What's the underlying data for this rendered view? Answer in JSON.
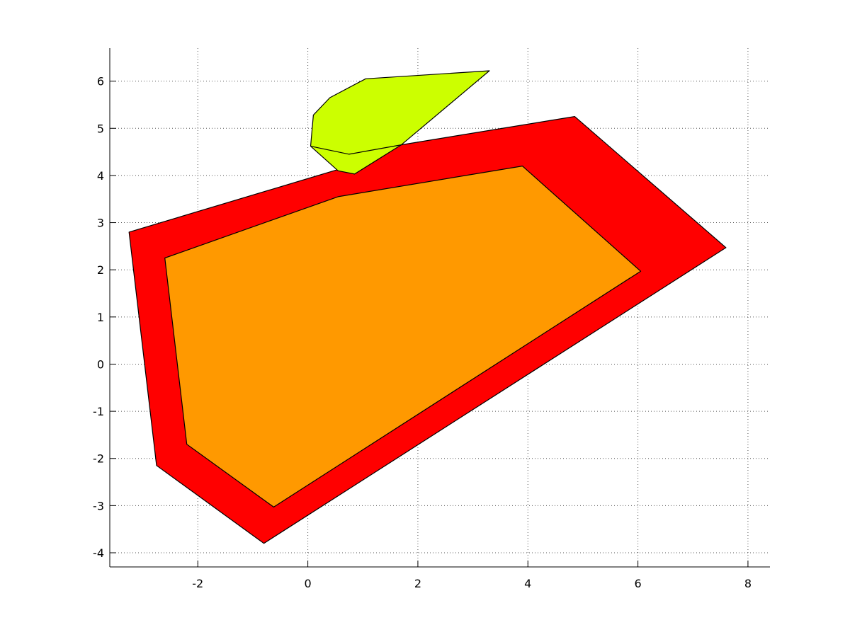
{
  "chart_data": {
    "type": "area",
    "title": "",
    "xlabel": "",
    "ylabel": "",
    "xlim": [
      -3.6,
      8.4
    ],
    "ylim": [
      -4.3,
      6.7
    ],
    "x_ticks": [
      -2,
      0,
      2,
      4,
      6,
      8
    ],
    "y_ticks": [
      -4,
      -3,
      -2,
      -1,
      0,
      1,
      2,
      3,
      4,
      5,
      6
    ],
    "x_tick_labels": [
      "-2",
      "0",
      "2",
      "4",
      "6",
      "8"
    ],
    "y_tick_labels": [
      "-4",
      "-3",
      "-2",
      "-1",
      "0",
      "1",
      "2",
      "3",
      "4",
      "5",
      "6"
    ],
    "grid": true,
    "legend": "none",
    "series": [
      {
        "color": "#ff0000",
        "points": [
          [
            -3.25,
            2.8
          ],
          [
            0.9,
            4.25
          ],
          [
            1.7,
            4.65
          ],
          [
            4.85,
            5.25
          ],
          [
            7.6,
            2.47
          ],
          [
            -0.8,
            -3.8
          ],
          [
            -2.75,
            -2.15
          ]
        ]
      },
      {
        "color": "#ff9900",
        "points": [
          [
            -2.6,
            2.25
          ],
          [
            0.55,
            3.55
          ],
          [
            3.9,
            4.2
          ],
          [
            6.05,
            1.97
          ],
          [
            -0.62,
            -3.03
          ],
          [
            -2.2,
            -1.7
          ]
        ]
      },
      {
        "color": "#ccff00",
        "points": [
          [
            0.1,
            5.28
          ],
          [
            0.4,
            5.65
          ],
          [
            1.05,
            6.05
          ],
          [
            3.3,
            6.22
          ],
          [
            1.7,
            4.65
          ],
          [
            0.85,
            4.03
          ],
          [
            0.55,
            4.1
          ],
          [
            0.05,
            4.62
          ]
        ]
      }
    ],
    "inner_edges": [
      {
        "color": "#ccff00",
        "points": [
          [
            0.05,
            4.62
          ],
          [
            0.75,
            4.45
          ],
          [
            1.7,
            4.65
          ]
        ]
      }
    ]
  }
}
